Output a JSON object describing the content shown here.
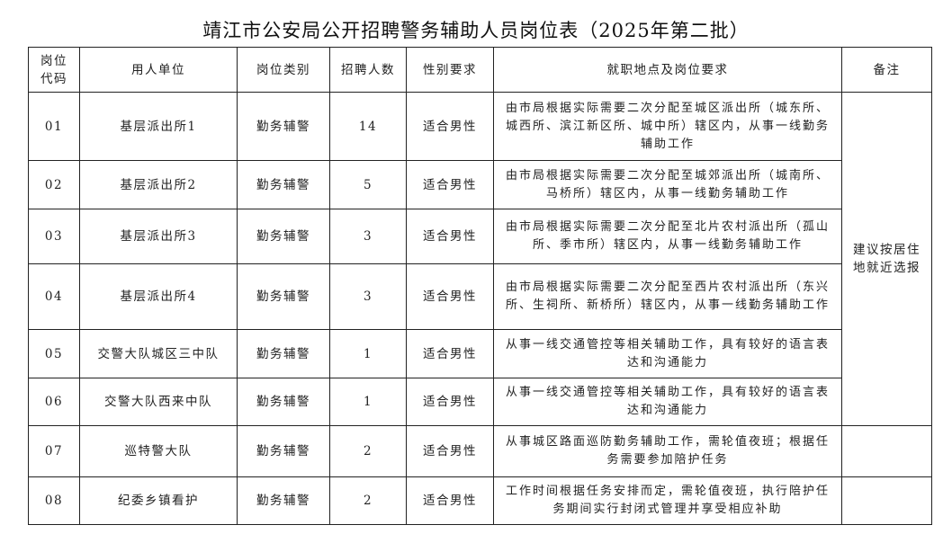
{
  "title": "靖江市公安局公开招聘警务辅助人员岗位表（2025年第二批）",
  "headers": [
    "岗位代码",
    "用人单位",
    "岗位类别",
    "招聘人数",
    "性别要求",
    "就职地点及岗位要求",
    "备注"
  ],
  "rows": [
    {
      "code": "01",
      "unit": "基层派出所1",
      "category": "勤务辅警",
      "count": "14",
      "gender": "适合男性",
      "requirement": "由市局根据实际需要二次分配至城区派出所（城东所、城西所、滨江新区所、城中所）辖区内，从事一线勤务辅助工作"
    },
    {
      "code": "02",
      "unit": "基层派出所2",
      "category": "勤务辅警",
      "count": "5",
      "gender": "适合男性",
      "requirement": "由市局根据实际需要二次分配至城郊派出所（城南所、马桥所）辖区内，从事一线勤务辅助工作"
    },
    {
      "code": "03",
      "unit": "基层派出所3",
      "category": "勤务辅警",
      "count": "3",
      "gender": "适合男性",
      "requirement": "由市局根据实际需要二次分配至北片农村派出所（孤山所、季市所）辖区内，从事一线勤务辅助工作"
    },
    {
      "code": "04",
      "unit": "基层派出所4",
      "category": "勤务辅警",
      "count": "3",
      "gender": "适合男性",
      "requirement": "由市局根据实际需要二次分配至西片农村派出所（东兴所、生祠所、新桥所）辖区内，从事一线勤务辅助工作"
    },
    {
      "code": "05",
      "unit": "交警大队城区三中队",
      "category": "勤务辅警",
      "count": "1",
      "gender": "适合男性",
      "requirement": "从事一线交通管控等相关辅助工作，具有较好的语言表达和沟通能力"
    },
    {
      "code": "06",
      "unit": "交警大队西来中队",
      "category": "勤务辅警",
      "count": "1",
      "gender": "适合男性",
      "requirement": "从事一线交通管控等相关辅助工作，具有较好的语言表达和沟通能力"
    },
    {
      "code": "07",
      "unit": "巡特警大队",
      "category": "勤务辅警",
      "count": "2",
      "gender": "适合男性",
      "requirement": "从事城区路面巡防勤务辅助工作，需轮值夜班；根据任务需要参加陪护任务"
    },
    {
      "code": "08",
      "unit": "纪委乡镇看护",
      "category": "勤务辅警",
      "count": "2",
      "gender": "适合男性",
      "requirement": "工作时间根据任务安排而定，需轮值夜班，执行陪护任务期间实行封闭式管理并享受相应补助"
    }
  ],
  "remark_rows_01_06": "建议按居住地就近选报"
}
